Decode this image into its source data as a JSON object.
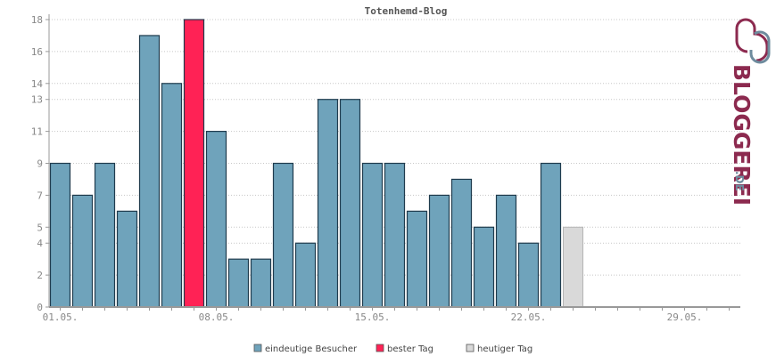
{
  "chart_data": {
    "type": "bar",
    "title": "Totenhemd-Blog",
    "xlabel": "",
    "ylabel": "",
    "ylim": [
      0,
      18
    ],
    "y_ticks": [
      "0",
      "2",
      "4",
      "5",
      "7",
      "9",
      "11",
      "13",
      "14",
      "16",
      "18"
    ],
    "x_tick_labels": [
      {
        "day": 1,
        "label": "01.05."
      },
      {
        "day": 8,
        "label": "08.05."
      },
      {
        "day": 15,
        "label": "15.05."
      },
      {
        "day": 22,
        "label": "22.05."
      },
      {
        "day": 29,
        "label": "29.05."
      }
    ],
    "days": [
      1,
      2,
      3,
      4,
      5,
      6,
      7,
      8,
      9,
      10,
      11,
      12,
      13,
      14,
      15,
      16,
      17,
      18,
      19,
      20,
      21,
      22,
      23
    ],
    "values": [
      9,
      7,
      9,
      6,
      17,
      14,
      18,
      11,
      3,
      3,
      9,
      4,
      13,
      13,
      9,
      9,
      6,
      7,
      8,
      5,
      7,
      4,
      9
    ],
    "highlight_day": 7,
    "today": {
      "day": 24,
      "value": 5
    },
    "total_days": 31,
    "grid": true,
    "legend_position": "bottom",
    "colors": {
      "unique": "#6fa3bb",
      "best": "#ff2255",
      "today": "#d9d9d9",
      "outline": "#1f3b4d",
      "grid": "#c8c8c8",
      "axis": "#999999"
    }
  },
  "legend": [
    {
      "label": "eindeutige Besucher",
      "color": "#6fa3bb"
    },
    {
      "label": "bester Tag",
      "color": "#ff2255"
    },
    {
      "label": "heutiger Tag",
      "color": "#d9d9d9"
    }
  ],
  "brand": {
    "name": "BLOGGEREI",
    "tld": ".DE",
    "color": "#8c2a4f",
    "accent": "#6e8c9e"
  }
}
